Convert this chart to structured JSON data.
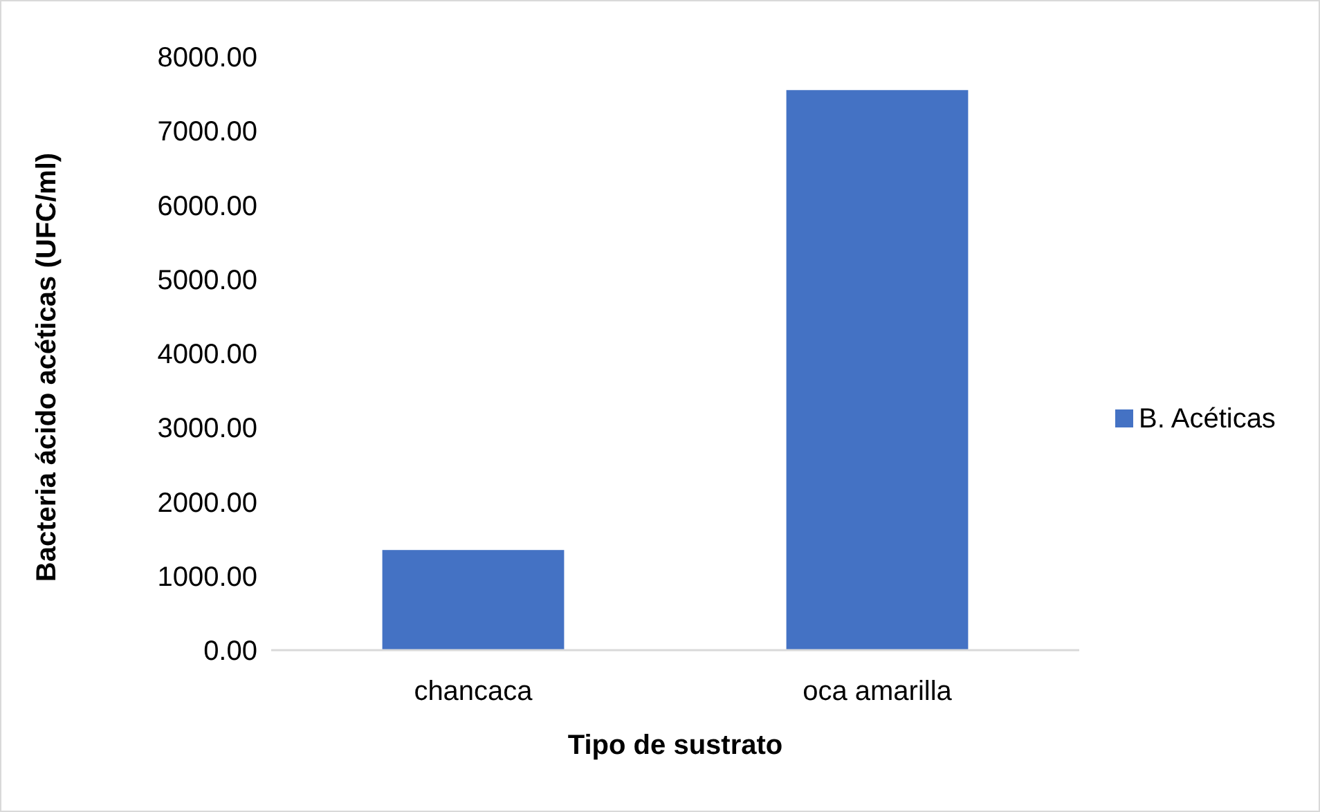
{
  "chart_data": {
    "type": "bar",
    "xlabel": "Tipo de sustrato",
    "ylabel": "Bacteria ácido acéticas (UFC/ml)",
    "categories": [
      "chancaca",
      "oca amarilla"
    ],
    "series": [
      {
        "name": "B. Acéticas",
        "color": "#4472c4",
        "values": [
          1350,
          7550
        ]
      }
    ],
    "ylim": [
      0,
      8000
    ],
    "yticks": [
      {
        "value": 0,
        "label": "0.00"
      },
      {
        "value": 1000,
        "label": "1000.00"
      },
      {
        "value": 2000,
        "label": "2000.00"
      },
      {
        "value": 3000,
        "label": "3000.00"
      },
      {
        "value": 4000,
        "label": "4000.00"
      },
      {
        "value": 5000,
        "label": "5000.00"
      },
      {
        "value": 6000,
        "label": "6000.00"
      },
      {
        "value": 7000,
        "label": "7000.00"
      },
      {
        "value": 8000,
        "label": "8000.00"
      }
    ],
    "grid": false,
    "legend": "right"
  }
}
